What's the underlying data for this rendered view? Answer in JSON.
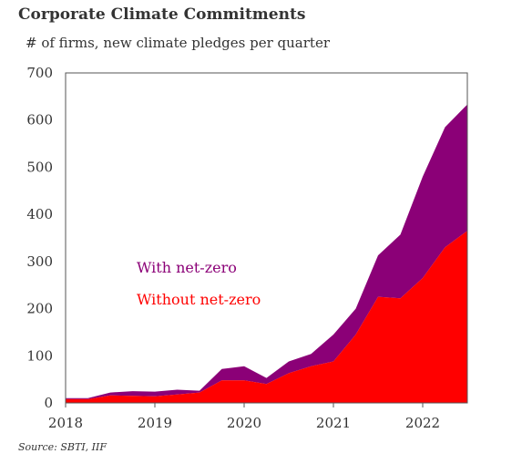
{
  "title": "Corporate Climate Commitments",
  "subtitle": "# of firms, new climate pledges per quarter",
  "source": "Source:  SBTI, IIF",
  "colors": {
    "with_net_zero": "#8b0077",
    "without_net_zero": "#ff0000"
  },
  "chart_data": {
    "type": "area",
    "stacked": true,
    "title": "Corporate Climate Commitments",
    "ylabel": "# of firms, new climate pledges per quarter",
    "xlabel": "",
    "x": [
      2018.0,
      2018.25,
      2018.5,
      2018.75,
      2019.0,
      2019.25,
      2019.5,
      2019.75,
      2020.0,
      2020.25,
      2020.5,
      2020.75,
      2021.0,
      2021.25,
      2021.5,
      2021.75,
      2022.0,
      2022.25,
      2022.5
    ],
    "ylim": [
      0,
      700
    ],
    "yticks": [
      0,
      100,
      200,
      300,
      400,
      500,
      600,
      700
    ],
    "xticks": [
      2018,
      2019,
      2020,
      2021,
      2022
    ],
    "series": [
      {
        "name": "Without net-zero",
        "values": [
          8,
          8,
          16,
          15,
          14,
          18,
          22,
          48,
          48,
          40,
          63,
          78,
          88,
          145,
          225,
          222,
          265,
          330,
          365
        ]
      },
      {
        "name": "With net-zero",
        "values": [
          2,
          2,
          6,
          10,
          10,
          10,
          4,
          24,
          30,
          13,
          25,
          26,
          57,
          55,
          88,
          135,
          215,
          255,
          268
        ]
      }
    ],
    "totals": [
      10,
      10,
      22,
      25,
      24,
      28,
      26,
      72,
      78,
      53,
      88,
      104,
      145,
      200,
      313,
      357,
      480,
      585,
      633
    ],
    "legend_placement": "inside-left",
    "grid": false
  }
}
